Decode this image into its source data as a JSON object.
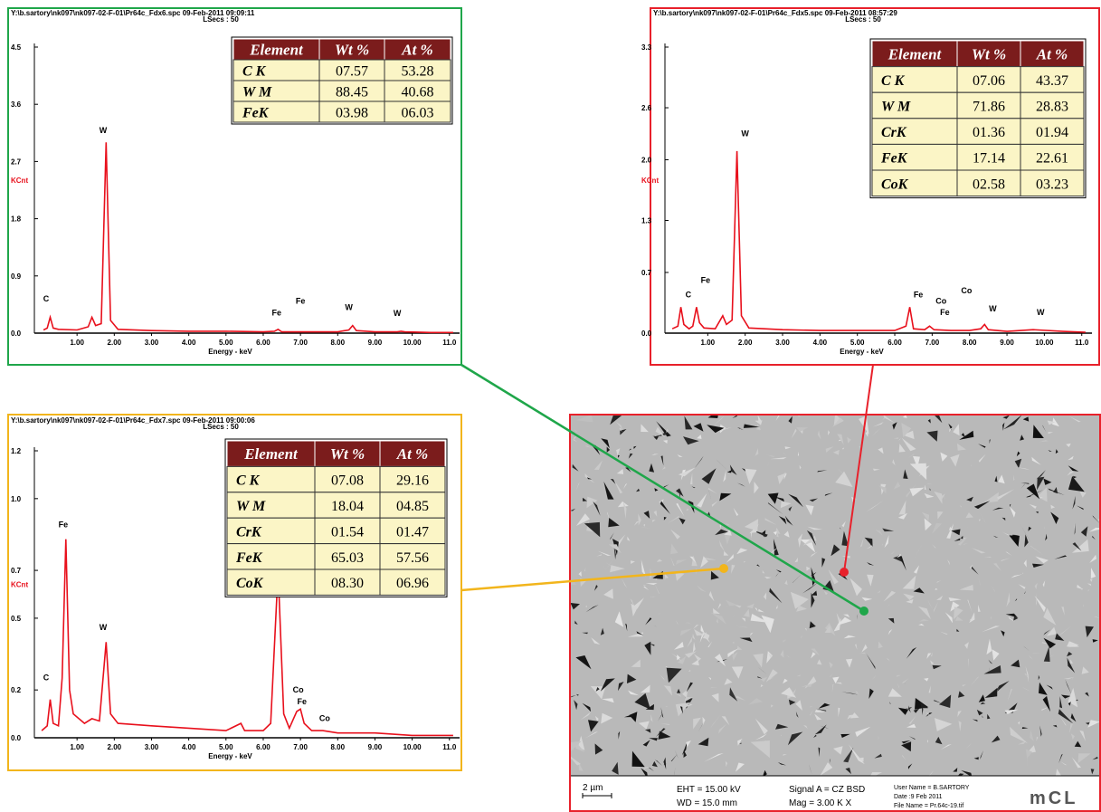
{
  "chart_data": [
    {
      "type": "line",
      "title": "Y:\\b.sartory\\nk097\\nk097-02-F-01\\Pr64c_Fdx6.spc  09-Feb-2011 09:09:11",
      "subtitle": "LSecs : 50",
      "y_label": "KCnt",
      "x_label": "Energy - keV",
      "color": "#e8101c",
      "xlim": [
        0,
        11.2
      ],
      "ylim": [
        0,
        4.5
      ],
      "xticks": [
        {
          "value": 1,
          "label": "1.00"
        },
        {
          "value": 2,
          "label": "2.00"
        },
        {
          "value": 3,
          "label": "3.00"
        },
        {
          "value": 4,
          "label": "4.00"
        },
        {
          "value": 5,
          "label": "5.00"
        },
        {
          "value": 6,
          "label": "6.00"
        },
        {
          "value": 7,
          "label": "7.00"
        },
        {
          "value": 8,
          "label": "8.00"
        },
        {
          "value": 9,
          "label": "9.00"
        },
        {
          "value": 10,
          "label": "10.00"
        },
        {
          "value": 11,
          "label": "11.0"
        }
      ],
      "yticks": [
        {
          "value": 0,
          "label": "0.0"
        },
        0.9,
        1.8,
        2.7,
        3.6,
        4.5
      ],
      "x": [
        0.1,
        0.2,
        0.28,
        0.36,
        0.5,
        1.0,
        1.3,
        1.4,
        1.5,
        1.65,
        1.78,
        1.9,
        2.1,
        3,
        4,
        5,
        6,
        6.3,
        6.4,
        6.5,
        7,
        8,
        8.3,
        8.4,
        8.5,
        9,
        9.6,
        9.7,
        9.8,
        10.5,
        11.1
      ],
      "values": [
        0.05,
        0.08,
        0.25,
        0.08,
        0.06,
        0.05,
        0.1,
        0.25,
        0.12,
        0.15,
        3.0,
        0.2,
        0.06,
        0.04,
        0.03,
        0.03,
        0.02,
        0.03,
        0.06,
        0.02,
        0.02,
        0.02,
        0.05,
        0.12,
        0.04,
        0.02,
        0.02,
        0.03,
        0.02,
        0.01,
        0.01
      ],
      "peaks": [
        {
          "label": "C",
          "x": 0.17,
          "y": 0.5
        },
        {
          "label": "W",
          "x": 1.7,
          "y": 3.15
        },
        {
          "label": "Fe",
          "x": 6.36,
          "y": 0.28
        },
        {
          "label": "Fe",
          "x": 7.0,
          "y": 0.46
        },
        {
          "label": "W",
          "x": 8.3,
          "y": 0.36
        },
        {
          "label": "W",
          "x": 9.6,
          "y": 0.27
        }
      ],
      "table": {
        "columns": [
          "Element",
          "Wt %",
          "At %"
        ],
        "rows": [
          [
            "C K",
            "07.57",
            "53.28"
          ],
          [
            "W M",
            "88.45",
            "40.68"
          ],
          [
            "FeK",
            "03.98",
            "06.03"
          ]
        ]
      }
    },
    {
      "type": "line",
      "title": "Y:\\b.sartory\\nk097\\nk097-02-F-01\\Pr64c_Fdx5.spc  09-Feb-2011 08:57:29",
      "subtitle": "LSecs : 50",
      "y_label": "KCnt",
      "x_label": "Energy - keV",
      "color": "#e8101c",
      "xlim": [
        0,
        11.2
      ],
      "ylim": [
        0,
        3.3
      ],
      "xticks": [
        {
          "value": 1,
          "label": "1.00"
        },
        {
          "value": 2,
          "label": "2.00"
        },
        {
          "value": 3,
          "label": "3.00"
        },
        {
          "value": 4,
          "label": "4.00"
        },
        {
          "value": 5,
          "label": "5.00"
        },
        {
          "value": 6,
          "label": "6.00"
        },
        {
          "value": 7,
          "label": "7.00"
        },
        {
          "value": 8,
          "label": "8.00"
        },
        {
          "value": 9,
          "label": "9.00"
        },
        {
          "value": 10,
          "label": "10.00"
        },
        {
          "value": 11,
          "label": "11.0"
        }
      ],
      "yticks": [
        {
          "value": 0,
          "label": "0.0"
        },
        0.7,
        1.3,
        {
          "value": 2,
          "label": "2.0"
        },
        2.6,
        3.3
      ],
      "x": [
        0.05,
        0.2,
        0.28,
        0.36,
        0.5,
        0.6,
        0.7,
        0.78,
        0.9,
        1.2,
        1.4,
        1.5,
        1.65,
        1.78,
        1.9,
        2.1,
        3,
        4,
        5,
        6,
        6.3,
        6.4,
        6.5,
        6.8,
        6.93,
        7.05,
        7.5,
        8,
        8.3,
        8.4,
        8.5,
        9,
        9.7,
        10.5,
        11.1
      ],
      "values": [
        0.05,
        0.08,
        0.3,
        0.1,
        0.05,
        0.08,
        0.3,
        0.12,
        0.06,
        0.05,
        0.2,
        0.1,
        0.15,
        2.1,
        0.2,
        0.06,
        0.04,
        0.03,
        0.03,
        0.03,
        0.08,
        0.3,
        0.05,
        0.04,
        0.08,
        0.04,
        0.03,
        0.03,
        0.05,
        0.1,
        0.04,
        0.02,
        0.04,
        0.02,
        0.01
      ],
      "peaks": [
        {
          "label": "C",
          "x": 0.48,
          "y": 0.41
        },
        {
          "label": "Fe",
          "x": 0.94,
          "y": 0.58
        },
        {
          "label": "W",
          "x": 2.0,
          "y": 2.27
        },
        {
          "label": "Fe",
          "x": 6.63,
          "y": 0.41
        },
        {
          "label": "Co",
          "x": 7.24,
          "y": 0.34
        },
        {
          "label": "Fe",
          "x": 7.34,
          "y": 0.21
        },
        {
          "label": "Co",
          "x": 7.92,
          "y": 0.46
        },
        {
          "label": "W",
          "x": 8.62,
          "y": 0.25
        },
        {
          "label": "W",
          "x": 9.9,
          "y": 0.21
        }
      ],
      "table": {
        "columns": [
          "Element",
          "Wt %",
          "At %"
        ],
        "rows": [
          [
            "C K",
            "07.06",
            "43.37"
          ],
          [
            "W M",
            "71.86",
            "28.83"
          ],
          [
            "CrK",
            "01.36",
            "01.94"
          ],
          [
            "FeK",
            "17.14",
            "22.61"
          ],
          [
            "CoK",
            "02.58",
            "03.23"
          ]
        ]
      }
    },
    {
      "type": "line",
      "title": "Y:\\b.sartory\\nk097\\nk097-02-F-01\\Pr64c_Fdx7.spc  09-Feb-2011 09:00:06",
      "subtitle": "LSecs : 50",
      "y_label": "KCnt",
      "x_label": "Energy - keV",
      "color": "#e8101c",
      "xlim": [
        0,
        11.2
      ],
      "ylim": [
        0,
        1.2
      ],
      "xticks": [
        {
          "value": 1,
          "label": "1.00"
        },
        {
          "value": 2,
          "label": "2.00"
        },
        {
          "value": 3,
          "label": "3.00"
        },
        {
          "value": 4,
          "label": "4.00"
        },
        {
          "value": 5,
          "label": "5.00"
        },
        {
          "value": 6,
          "label": "6.00"
        },
        {
          "value": 7,
          "label": "7.00"
        },
        {
          "value": 8,
          "label": "8.00"
        },
        {
          "value": 9,
          "label": "9.00"
        },
        {
          "value": 10,
          "label": "10.00"
        },
        {
          "value": 11,
          "label": "11.0"
        }
      ],
      "yticks": [
        {
          "value": 0,
          "label": "0.0"
        },
        0.2,
        0.5,
        0.7,
        {
          "value": 1,
          "label": "1.0"
        },
        1.2
      ],
      "x": [
        0.05,
        0.2,
        0.28,
        0.36,
        0.5,
        0.6,
        0.7,
        0.8,
        0.9,
        1.2,
        1.4,
        1.6,
        1.78,
        1.9,
        2.1,
        3,
        4,
        5,
        5.4,
        5.5,
        6,
        6.2,
        6.4,
        6.55,
        6.7,
        6.9,
        7.0,
        7.1,
        7.3,
        7.6,
        8,
        9,
        10,
        11.1
      ],
      "values": [
        0.03,
        0.05,
        0.16,
        0.06,
        0.05,
        0.25,
        0.83,
        0.2,
        0.1,
        0.06,
        0.08,
        0.07,
        0.4,
        0.1,
        0.06,
        0.05,
        0.04,
        0.03,
        0.06,
        0.03,
        0.03,
        0.06,
        0.7,
        0.1,
        0.04,
        0.11,
        0.12,
        0.06,
        0.03,
        0.03,
        0.02,
        0.02,
        0.01,
        0.01
      ],
      "peaks": [
        {
          "label": "C",
          "x": 0.17,
          "y": 0.24
        },
        {
          "label": "Fe",
          "x": 0.63,
          "y": 0.88
        },
        {
          "label": "W",
          "x": 1.7,
          "y": 0.45
        },
        {
          "label": "Co",
          "x": 6.94,
          "y": 0.19
        },
        {
          "label": "Fe",
          "x": 7.04,
          "y": 0.14
        },
        {
          "label": "Co",
          "x": 7.65,
          "y": 0.07
        }
      ],
      "table": {
        "columns": [
          "Element",
          "Wt %",
          "At %"
        ],
        "rows": [
          [
            "C K",
            "07.08",
            "29.16"
          ],
          [
            "W M",
            "18.04",
            "04.85"
          ],
          [
            "CrK",
            "01.54",
            "01.47"
          ],
          [
            "FeK",
            "65.03",
            "57.56"
          ],
          [
            "CoK",
            "08.30",
            "06.96"
          ]
        ]
      }
    }
  ],
  "sem_image": {
    "scale_bar": "2 µm",
    "eht": "EHT = 15.00 kV",
    "wd": "WD = 15.0 mm",
    "signal": "Signal A = CZ BSD",
    "mag": "Mag =  3.00 K X",
    "user": "User Name = B.SARTORY",
    "date": "Date :9 Feb 2011",
    "file": "File Name = Pr.64c-19.tif",
    "logo": "mCL"
  }
}
